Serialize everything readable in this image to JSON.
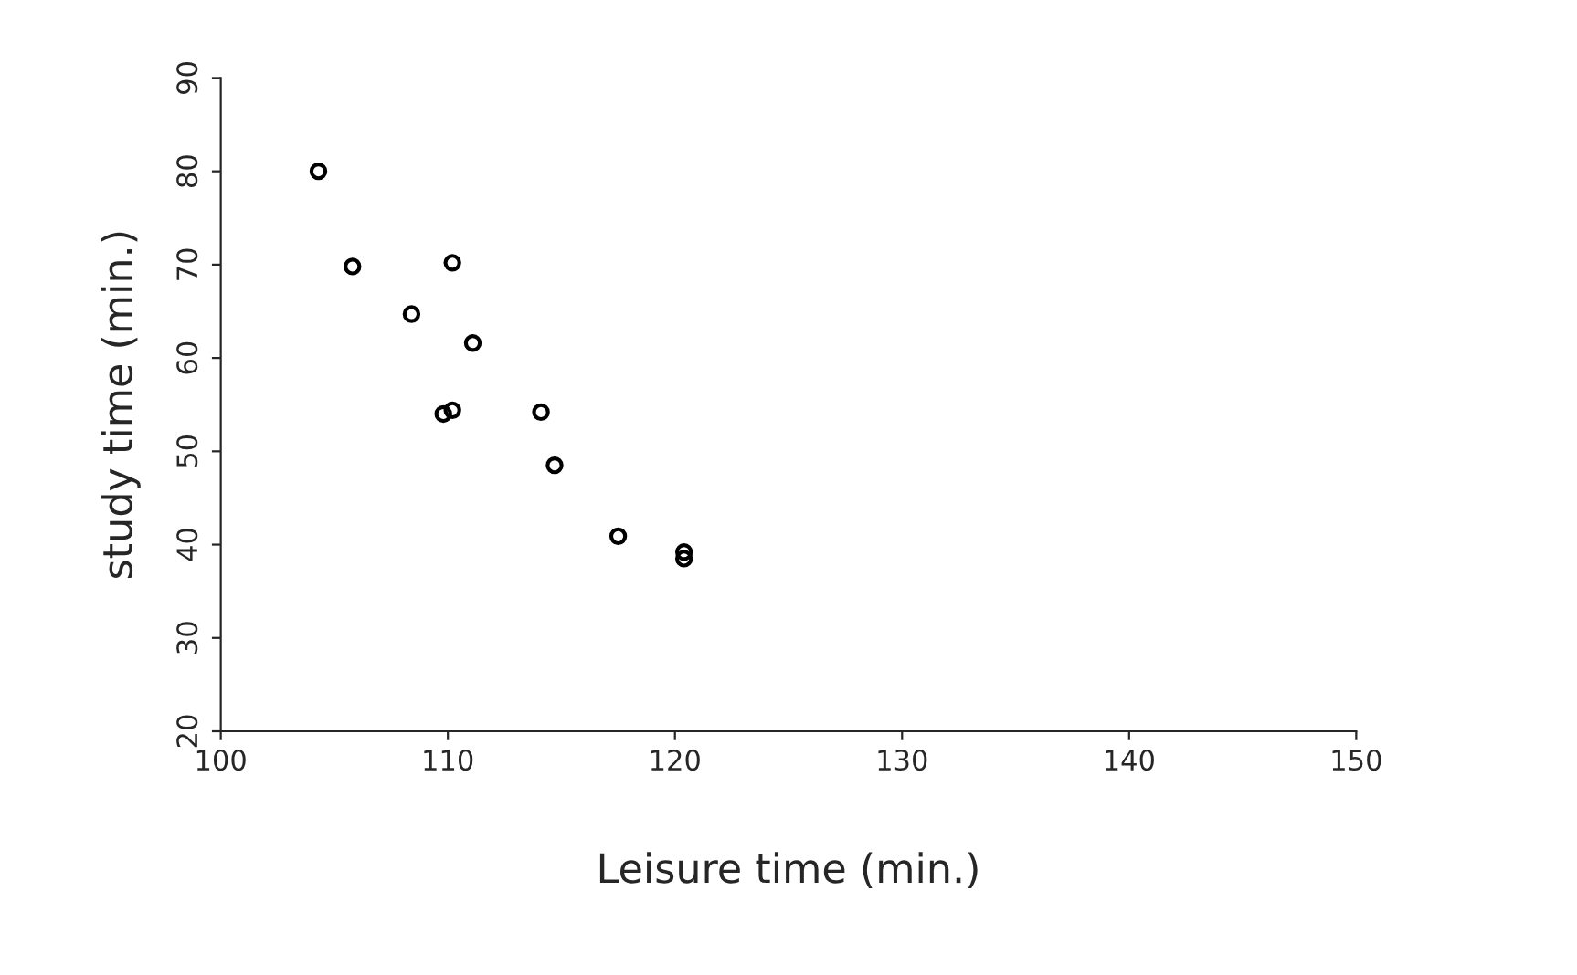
{
  "chart_data": {
    "type": "scatter",
    "xlabel": "Leisure time (min.)",
    "ylabel": "study time (min.)",
    "x": [
      104.3,
      105.8,
      108.4,
      110.2,
      111.1,
      109.8,
      110.2,
      114.1,
      114.7,
      117.5,
      120.4,
      120.4
    ],
    "series": [
      {
        "color": "#000000",
        "values": [
          80.0,
          69.8,
          64.7,
          70.2,
          61.6,
          54.0,
          54.4,
          54.2,
          48.5,
          40.9,
          39.2,
          38.5
        ]
      }
    ],
    "xlim": [
      100,
      150
    ],
    "xticks": [
      100,
      110,
      120,
      130,
      140,
      150
    ],
    "ylim": [
      20,
      90
    ],
    "yticks": [
      20,
      30,
      40,
      50,
      60,
      70,
      80,
      90
    ],
    "marker": "circle",
    "grid": false,
    "legend": false
  }
}
